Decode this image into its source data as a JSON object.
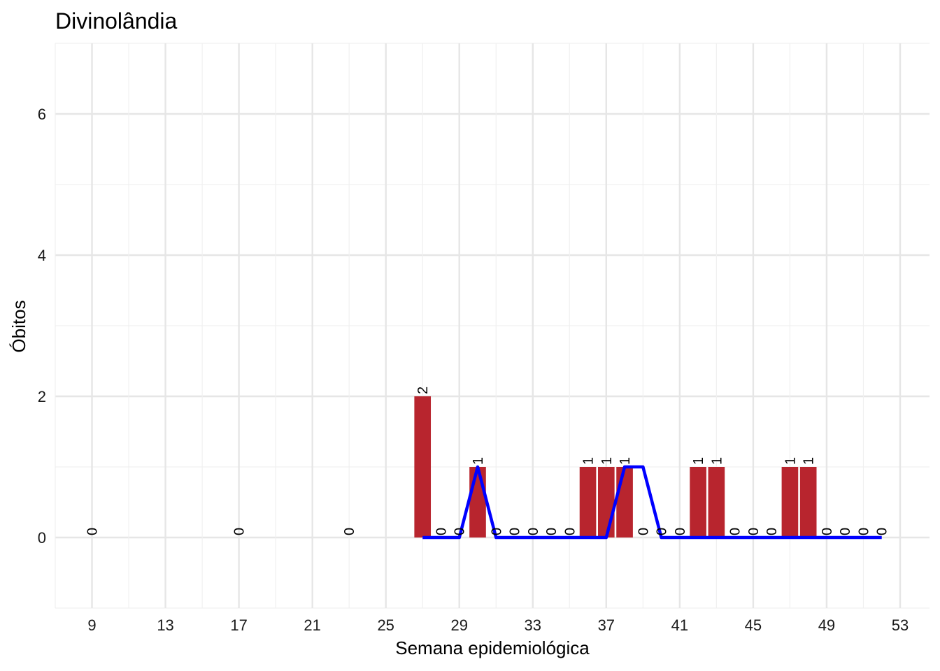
{
  "chart_data": {
    "type": "bar",
    "title": "Divinolândia",
    "xlabel": "Semana epidemiológica",
    "ylabel": "Óbitos",
    "xlim": [
      7.0,
      54.6
    ],
    "ylim": [
      -1,
      7
    ],
    "x_ticks": [
      9,
      13,
      17,
      21,
      25,
      29,
      33,
      37,
      41,
      45,
      49,
      53
    ],
    "y_ticks": [
      0,
      2,
      4,
      6
    ],
    "grid": true,
    "bar_color": "#B8252E",
    "line_color": "#0000FF",
    "series": [
      {
        "type": "bar",
        "x": [
          9,
          17,
          23,
          27,
          28,
          29,
          30,
          31,
          32,
          33,
          34,
          35,
          36,
          37,
          38,
          39,
          40,
          41,
          42,
          43,
          44,
          45,
          46,
          47,
          48,
          49,
          50,
          51,
          52
        ],
        "values": [
          0,
          0,
          0,
          2,
          0,
          0,
          1,
          0,
          0,
          0,
          0,
          0,
          1,
          1,
          1,
          0,
          0,
          0,
          1,
          1,
          0,
          0,
          0,
          1,
          1,
          0,
          0,
          0,
          0
        ],
        "labels": [
          "0",
          "0",
          "0",
          "2",
          "0",
          "0",
          "1",
          "0",
          "0",
          "0",
          "0",
          "0",
          "1",
          "1",
          "1",
          "0",
          "0",
          "0",
          "1",
          "1",
          "0",
          "0",
          "0",
          "1",
          "1",
          "0",
          "0",
          "0",
          "0"
        ]
      },
      {
        "type": "line",
        "x": [
          27,
          28,
          29,
          30,
          31,
          32,
          33,
          34,
          35,
          36,
          37,
          38,
          39,
          40,
          41,
          42,
          43,
          44,
          45,
          46,
          47,
          48,
          49,
          50,
          51,
          52
        ],
        "values": [
          0,
          0,
          0,
          1,
          0,
          0,
          0,
          0,
          0,
          0,
          0,
          1,
          1,
          0,
          0,
          0,
          0,
          0,
          0,
          0,
          0,
          0,
          0,
          0,
          0,
          0
        ]
      }
    ]
  }
}
